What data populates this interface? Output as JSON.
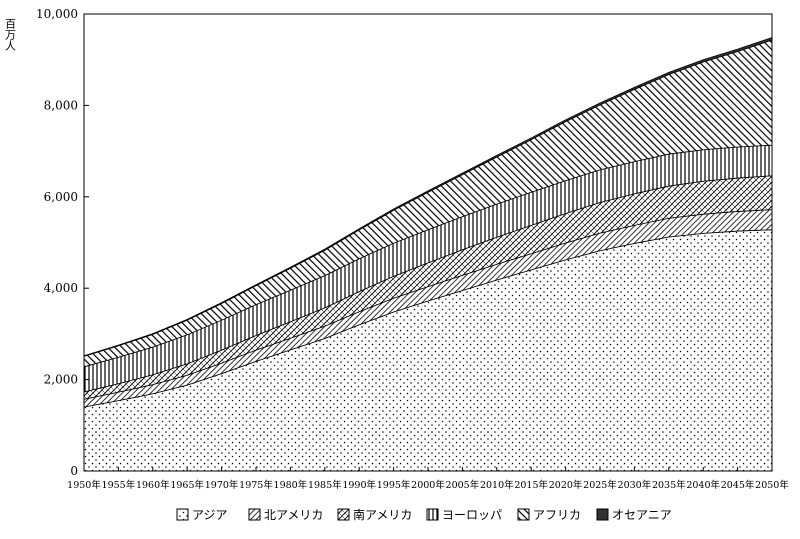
{
  "chart_data": {
    "type": "area",
    "stacked": true,
    "ylabel": "百万人",
    "ylim": [
      0,
      10000
    ],
    "yticks": [
      "0",
      "2,000",
      "4,000",
      "6,000",
      "8,000",
      "10,000"
    ],
    "ytick_values": [
      0,
      2000,
      4000,
      6000,
      8000,
      10000
    ],
    "x": [
      "1950年",
      "1955年",
      "1960年",
      "1965年",
      "1970年",
      "1975年",
      "1980年",
      "1985年",
      "1990年",
      "1995年",
      "2000年",
      "2005年",
      "2010年",
      "2015年",
      "2020年",
      "2025年",
      "2030年",
      "2035年",
      "2040年",
      "2045年",
      "2050年"
    ],
    "legend_position": "bottom",
    "series": [
      {
        "name": "アジア",
        "pattern": "dots",
        "values": [
          1400,
          1540,
          1690,
          1880,
          2130,
          2400,
          2650,
          2900,
          3200,
          3480,
          3720,
          3950,
          4180,
          4400,
          4620,
          4820,
          4980,
          5120,
          5200,
          5250,
          5280
        ]
      },
      {
        "name": "北アメリカ",
        "pattern": "diag-dense",
        "values": [
          170,
          185,
          200,
          215,
          230,
          245,
          255,
          270,
          285,
          300,
          315,
          330,
          345,
          355,
          370,
          385,
          395,
          410,
          420,
          430,
          440
        ]
      },
      {
        "name": "南アメリカ",
        "pattern": "crosshatch",
        "values": [
          160,
          185,
          215,
          250,
          285,
          320,
          360,
          400,
          440,
          480,
          520,
          560,
          590,
          620,
          645,
          670,
          690,
          705,
          720,
          730,
          740
        ]
      },
      {
        "name": "ヨーロッパ",
        "pattern": "vertical",
        "values": [
          550,
          580,
          605,
          635,
          655,
          675,
          690,
          705,
          720,
          725,
          725,
          725,
          725,
          725,
          720,
          715,
          705,
          700,
          690,
          680,
          670
        ]
      },
      {
        "name": "アフリカ",
        "pattern": "diag-back",
        "values": [
          230,
          250,
          280,
          320,
          365,
          415,
          480,
          555,
          630,
          720,
          820,
          920,
          1030,
          1150,
          1290,
          1420,
          1580,
          1740,
          1920,
          2090,
          2300
        ]
      },
      {
        "name": "オセアニア",
        "pattern": "solid",
        "values": [
          13,
          14,
          16,
          18,
          20,
          21,
          23,
          25,
          27,
          29,
          31,
          33,
          36,
          38,
          40,
          42,
          45,
          47,
          50,
          52,
          55
        ]
      }
    ]
  }
}
